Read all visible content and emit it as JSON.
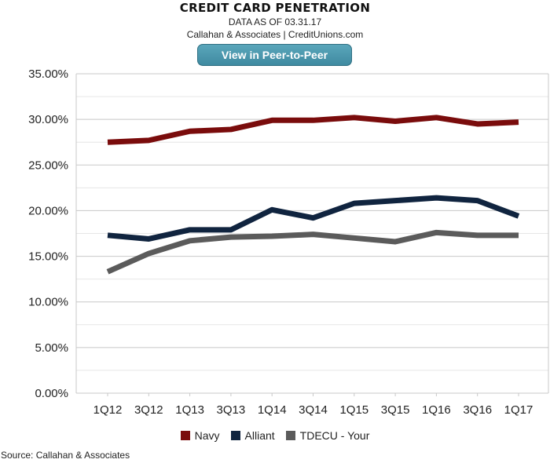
{
  "header": {
    "title": "CREDIT CARD PENETRATION",
    "subtitle": "DATA AS OF 03.31.17",
    "attribution": "Callahan & Associates | CreditUnions.com",
    "button_label": "View in Peer-to-Peer"
  },
  "source_note": "Source: Callahan & Associates",
  "chart_data": {
    "type": "line",
    "categories": [
      "1Q12",
      "3Q12",
      "1Q13",
      "3Q13",
      "1Q14",
      "3Q14",
      "1Q15",
      "3Q15",
      "1Q16",
      "3Q16",
      "1Q17"
    ],
    "yticks": [
      "0.00%",
      "5.00%",
      "10.00%",
      "15.00%",
      "20.00%",
      "25.00%",
      "30.00%",
      "35.00%"
    ],
    "ylim": [
      0,
      35
    ],
    "grid": true,
    "legend_position": "bottom",
    "series": [
      {
        "name": "Navy",
        "color": "#7a0c0c",
        "values": [
          27.5,
          27.7,
          28.7,
          28.9,
          29.9,
          29.9,
          30.2,
          29.8,
          30.2,
          29.5,
          29.7
        ]
      },
      {
        "name": "Alliant",
        "color": "#10243f",
        "values": [
          17.3,
          16.9,
          17.9,
          17.9,
          20.1,
          19.2,
          20.8,
          21.1,
          21.4,
          21.1,
          19.4
        ]
      },
      {
        "name": "TDECU - Your",
        "color": "#5b5b5b",
        "values": [
          13.3,
          15.3,
          16.7,
          17.1,
          17.2,
          17.4,
          17.0,
          16.6,
          17.6,
          17.3,
          17.3
        ]
      }
    ]
  }
}
